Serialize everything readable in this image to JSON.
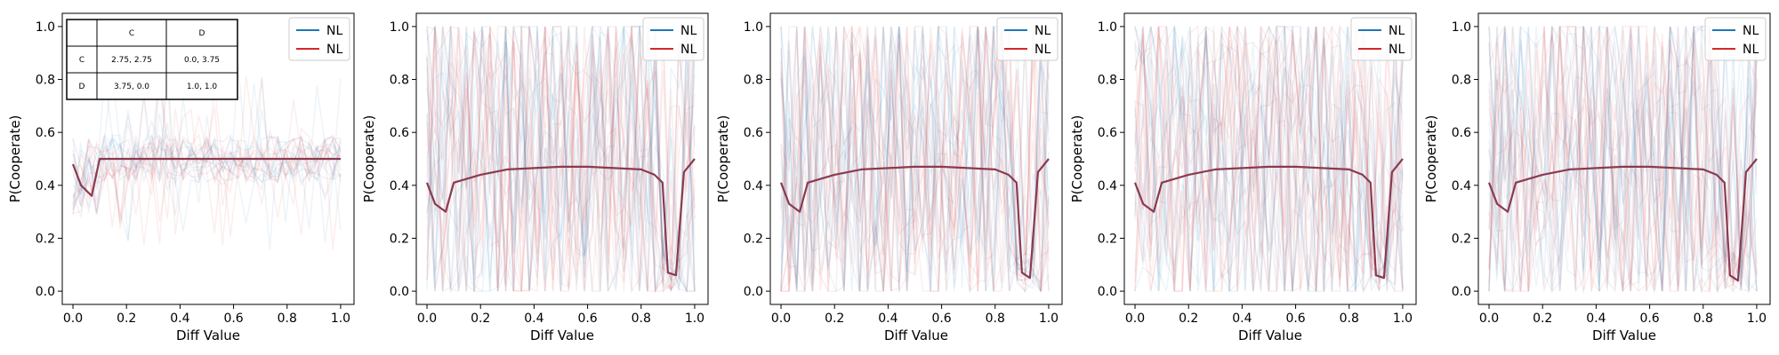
{
  "chart_data": [
    {
      "type": "line",
      "xlabel": "Diff Value",
      "ylabel": "P(Cooperate)",
      "xlim": [
        -0.04,
        1.05
      ],
      "ylim": [
        -0.05,
        1.05
      ],
      "xticks": [
        "0.0",
        "0.2",
        "0.4",
        "0.6",
        "0.8",
        "1.0"
      ],
      "yticks": [
        "0.0",
        "0.2",
        "0.4",
        "0.6",
        "0.8",
        "1.0"
      ],
      "legend": {
        "placement": "upper right",
        "entries": [
          {
            "label": "NL",
            "color": "#1f77b4"
          },
          {
            "label": "NL",
            "color": "#d62728"
          }
        ]
      },
      "payoff_table": {
        "header": [
          "",
          "C",
          "D"
        ],
        "rows": [
          [
            "C",
            "2.75, 2.75",
            "0.0, 3.75"
          ],
          [
            "D",
            "3.75, 0.0",
            "1.0, 1.0"
          ]
        ]
      },
      "series": [
        {
          "color": "#8b3a4f",
          "x": [
            0.0,
            0.03,
            0.07,
            0.1,
            0.15,
            0.2,
            0.3,
            0.4,
            0.5,
            0.6,
            0.7,
            0.8,
            0.9,
            1.0
          ],
          "values": [
            0.48,
            0.4,
            0.36,
            0.5,
            0.5,
            0.5,
            0.5,
            0.5,
            0.5,
            0.5,
            0.5,
            0.5,
            0.5,
            0.5
          ]
        }
      ],
      "background_traces": {
        "count": 22,
        "colors": [
          "#1f77b4",
          "#d62728"
        ],
        "opacity": 0.08,
        "value_range": [
          0.15,
          0.85
        ]
      }
    },
    {
      "type": "line",
      "xlabel": "Diff Value",
      "ylabel": "P(Cooperate)",
      "xlim": [
        -0.04,
        1.05
      ],
      "ylim": [
        -0.05,
        1.05
      ],
      "xticks": [
        "0.0",
        "0.2",
        "0.4",
        "0.6",
        "0.8",
        "1.0"
      ],
      "yticks": [
        "0.0",
        "0.2",
        "0.4",
        "0.6",
        "0.8",
        "1.0"
      ],
      "legend": {
        "placement": "upper right",
        "entries": [
          {
            "label": "NL",
            "color": "#1f77b4"
          },
          {
            "label": "NL",
            "color": "#d62728"
          }
        ]
      },
      "series": [
        {
          "color": "#8b3a4f",
          "x": [
            0.0,
            0.03,
            0.07,
            0.1,
            0.2,
            0.3,
            0.4,
            0.5,
            0.6,
            0.7,
            0.8,
            0.85,
            0.88,
            0.9,
            0.93,
            0.96,
            1.0
          ],
          "values": [
            0.41,
            0.33,
            0.3,
            0.41,
            0.44,
            0.46,
            0.465,
            0.47,
            0.47,
            0.465,
            0.46,
            0.44,
            0.41,
            0.07,
            0.06,
            0.45,
            0.5
          ]
        }
      ],
      "background_traces": {
        "count": 30,
        "colors": [
          "#1f77b4",
          "#d62728"
        ],
        "opacity": 0.08,
        "value_range": [
          0.0,
          1.0
        ]
      }
    },
    {
      "type": "line",
      "xlabel": "Diff Value",
      "ylabel": "P(Cooperate)",
      "xlim": [
        -0.04,
        1.05
      ],
      "ylim": [
        -0.05,
        1.05
      ],
      "xticks": [
        "0.0",
        "0.2",
        "0.4",
        "0.6",
        "0.8",
        "1.0"
      ],
      "yticks": [
        "0.0",
        "0.2",
        "0.4",
        "0.6",
        "0.8",
        "1.0"
      ],
      "legend": {
        "placement": "upper right",
        "entries": [
          {
            "label": "NL",
            "color": "#1f77b4"
          },
          {
            "label": "NL",
            "color": "#d62728"
          }
        ]
      },
      "series": [
        {
          "color": "#8b3a4f",
          "x": [
            0.0,
            0.03,
            0.07,
            0.1,
            0.2,
            0.3,
            0.4,
            0.5,
            0.6,
            0.7,
            0.8,
            0.85,
            0.88,
            0.9,
            0.93,
            0.96,
            1.0
          ],
          "values": [
            0.41,
            0.33,
            0.3,
            0.41,
            0.44,
            0.46,
            0.465,
            0.47,
            0.47,
            0.465,
            0.46,
            0.44,
            0.41,
            0.07,
            0.05,
            0.45,
            0.5
          ]
        }
      ],
      "background_traces": {
        "count": 30,
        "colors": [
          "#1f77b4",
          "#d62728"
        ],
        "opacity": 0.08,
        "value_range": [
          0.0,
          1.0
        ]
      }
    },
    {
      "type": "line",
      "xlabel": "Diff Value",
      "ylabel": "P(Cooperate)",
      "xlim": [
        -0.04,
        1.05
      ],
      "ylim": [
        -0.05,
        1.05
      ],
      "xticks": [
        "0.0",
        "0.2",
        "0.4",
        "0.6",
        "0.8",
        "1.0"
      ],
      "yticks": [
        "0.0",
        "0.2",
        "0.4",
        "0.6",
        "0.8",
        "1.0"
      ],
      "legend": {
        "placement": "upper right",
        "entries": [
          {
            "label": "NL",
            "color": "#1f77b4"
          },
          {
            "label": "NL",
            "color": "#d62728"
          }
        ]
      },
      "series": [
        {
          "color": "#8b3a4f",
          "x": [
            0.0,
            0.03,
            0.07,
            0.1,
            0.2,
            0.3,
            0.4,
            0.5,
            0.6,
            0.7,
            0.8,
            0.85,
            0.88,
            0.9,
            0.93,
            0.96,
            1.0
          ],
          "values": [
            0.41,
            0.33,
            0.3,
            0.41,
            0.44,
            0.46,
            0.465,
            0.47,
            0.47,
            0.465,
            0.46,
            0.44,
            0.41,
            0.06,
            0.05,
            0.45,
            0.5
          ]
        }
      ],
      "background_traces": {
        "count": 30,
        "colors": [
          "#1f77b4",
          "#d62728"
        ],
        "opacity": 0.08,
        "value_range": [
          0.0,
          1.0
        ]
      }
    },
    {
      "type": "line",
      "xlabel": "Diff Value",
      "ylabel": "P(Cooperate)",
      "xlim": [
        -0.04,
        1.05
      ],
      "ylim": [
        -0.05,
        1.05
      ],
      "xticks": [
        "0.0",
        "0.2",
        "0.4",
        "0.6",
        "0.8",
        "1.0"
      ],
      "yticks": [
        "0.0",
        "0.2",
        "0.4",
        "0.6",
        "0.8",
        "1.0"
      ],
      "legend": {
        "placement": "upper right",
        "entries": [
          {
            "label": "NL",
            "color": "#1f77b4"
          },
          {
            "label": "NL",
            "color": "#d62728"
          }
        ]
      },
      "series": [
        {
          "color": "#8b3a4f",
          "x": [
            0.0,
            0.03,
            0.07,
            0.1,
            0.2,
            0.3,
            0.4,
            0.5,
            0.6,
            0.7,
            0.8,
            0.85,
            0.88,
            0.9,
            0.93,
            0.96,
            1.0
          ],
          "values": [
            0.41,
            0.33,
            0.3,
            0.41,
            0.44,
            0.46,
            0.465,
            0.47,
            0.47,
            0.465,
            0.46,
            0.44,
            0.41,
            0.06,
            0.04,
            0.45,
            0.5
          ]
        }
      ],
      "background_traces": {
        "count": 30,
        "colors": [
          "#1f77b4",
          "#d62728"
        ],
        "opacity": 0.08,
        "value_range": [
          0.0,
          1.0
        ]
      }
    }
  ]
}
